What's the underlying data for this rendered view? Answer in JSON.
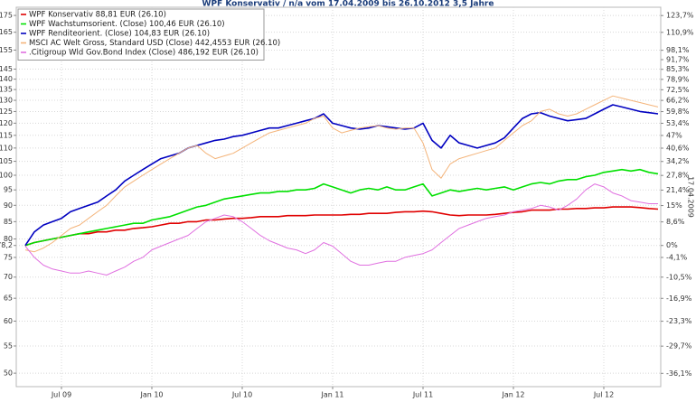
{
  "chart_data": {
    "type": "line",
    "title": "WPF Konservativ / n/a vom 17.04.2009 bis 26.10.2012 3,5 Jahre",
    "side_label": "17.04.2009",
    "log_scale": true,
    "grid": true,
    "legend": "top-left",
    "xlim": [
      2009.25,
      2012.815
    ],
    "xticks": [
      {
        "value": 2009.5,
        "label": "Jul 09"
      },
      {
        "value": 2010.0,
        "label": "Jan 10"
      },
      {
        "value": 2010.5,
        "label": "Jul 10"
      },
      {
        "value": 2011.0,
        "label": "Jan 11"
      },
      {
        "value": 2011.5,
        "label": "Jul 11"
      },
      {
        "value": 2012.0,
        "label": "Jan 12"
      },
      {
        "value": 2012.5,
        "label": "Jul 12"
      }
    ],
    "ylim": [
      47.7,
      180.1
    ],
    "yticks": [
      175,
      165,
      155,
      145,
      140,
      135,
      130,
      125,
      120,
      115,
      110,
      105,
      100,
      95,
      90,
      85,
      80,
      {
        "value": 78.2,
        "label": "78,2"
      },
      75,
      70,
      65,
      60,
      55,
      50
    ],
    "y2ticks": [
      {
        "value": 174.93,
        "label": "123,7%"
      },
      {
        "value": 164.93,
        "label": "110,9%"
      },
      {
        "value": 154.91,
        "label": "98,1%"
      },
      {
        "value": 149.91,
        "label": "91,7%"
      },
      {
        "value": 144.9,
        "label": "85,3%"
      },
      {
        "value": 139.9,
        "label": "78,9%"
      },
      {
        "value": 134.9,
        "label": "72,5%"
      },
      {
        "value": 129.97,
        "label": "66,2%"
      },
      {
        "value": 124.96,
        "label": "59,8%"
      },
      {
        "value": 119.96,
        "label": "53,4%"
      },
      {
        "value": 114.95,
        "label": "47%"
      },
      {
        "value": 109.95,
        "label": "40,6%"
      },
      {
        "value": 104.94,
        "label": "34,2%"
      },
      {
        "value": 99.94,
        "label": "27,8%"
      },
      {
        "value": 94.93,
        "label": "21,4%"
      },
      {
        "value": 89.93,
        "label": "15%"
      },
      {
        "value": 84.93,
        "label": "8,6%"
      },
      {
        "value": 78.2,
        "label": "0%"
      },
      {
        "value": 74.99,
        "label": "-4,1%"
      },
      {
        "value": 69.99,
        "label": "-10,5%"
      },
      {
        "value": 64.98,
        "label": "-16,9%"
      },
      {
        "value": 59.98,
        "label": "-23,3%"
      },
      {
        "value": 54.97,
        "label": "-29,7%"
      },
      {
        "value": 49.97,
        "label": "-36,1%"
      }
    ],
    "x": [
      2009.3,
      2009.35,
      2009.4,
      2009.45,
      2009.5,
      2009.55,
      2009.6,
      2009.65,
      2009.7,
      2009.75,
      2009.8,
      2009.85,
      2009.9,
      2009.95,
      2010.0,
      2010.05,
      2010.1,
      2010.15,
      2010.2,
      2010.25,
      2010.3,
      2010.35,
      2010.4,
      2010.45,
      2010.5,
      2010.55,
      2010.6,
      2010.65,
      2010.7,
      2010.75,
      2010.8,
      2010.85,
      2010.9,
      2010.95,
      2011.0,
      2011.05,
      2011.1,
      2011.15,
      2011.2,
      2011.25,
      2011.3,
      2011.35,
      2011.4,
      2011.45,
      2011.5,
      2011.55,
      2011.6,
      2011.65,
      2011.7,
      2011.75,
      2011.8,
      2011.85,
      2011.9,
      2011.95,
      2012.0,
      2012.05,
      2012.1,
      2012.15,
      2012.2,
      2012.25,
      2012.3,
      2012.35,
      2012.4,
      2012.45,
      2012.5,
      2012.55,
      2012.6,
      2012.65,
      2012.7,
      2012.75,
      2012.8
    ],
    "series": [
      {
        "name": "WPF Konservativ 88,81 EUR (26.10)",
        "color": "#e00000",
        "width": 1.6,
        "values": [
          78.2,
          79,
          79.5,
          80,
          80.5,
          81,
          81.5,
          81.5,
          82,
          82,
          82.5,
          82.5,
          83,
          83.2,
          83.5,
          84,
          84.5,
          84.5,
          85,
          85,
          85.5,
          85.5,
          85.8,
          86,
          86,
          86.2,
          86.5,
          86.5,
          86.5,
          86.8,
          86.8,
          86.8,
          87,
          87,
          87,
          87,
          87.2,
          87.2,
          87.5,
          87.5,
          87.5,
          87.8,
          88,
          88,
          88.2,
          88,
          87.5,
          87,
          86.8,
          87,
          87,
          87,
          87.2,
          87.5,
          87.8,
          88,
          88.5,
          88.5,
          88.5,
          88.8,
          88.8,
          89,
          89,
          89.2,
          89.2,
          89.5,
          89.5,
          89.5,
          89.3,
          89,
          88.8
        ]
      },
      {
        "name": "WPF Wachstumsorient. (Close) 100,46 EUR (26.10)",
        "color": "#00e000",
        "width": 1.6,
        "values": [
          78.2,
          79,
          79.5,
          80,
          80.5,
          81,
          81.5,
          82,
          82.5,
          83,
          83.5,
          84,
          84.5,
          84.5,
          85.5,
          86,
          86.5,
          87.5,
          88.5,
          89.5,
          90,
          91,
          92,
          92.5,
          93,
          93.5,
          94,
          94,
          94.5,
          94.5,
          95,
          95,
          95.5,
          97,
          96,
          95,
          94,
          95,
          95.5,
          95,
          96,
          95,
          95,
          96,
          97,
          93,
          94,
          95,
          94.5,
          95,
          95.5,
          95,
          95.5,
          96,
          95,
          96,
          97,
          97.5,
          97,
          98,
          98.5,
          98.5,
          99.5,
          100,
          101,
          101.5,
          102,
          101.5,
          102,
          101,
          100.5
        ]
      },
      {
        "name": "WPF Renditeorient. (Close) 104,83 EUR (26.10)",
        "color": "#0000c0",
        "width": 1.6,
        "values": [
          78.2,
          82,
          84,
          85,
          86,
          88,
          89,
          90,
          91,
          93,
          95,
          98,
          100,
          102,
          104,
          106,
          107,
          108,
          110,
          111,
          112,
          113,
          113.5,
          114.5,
          115,
          116,
          117,
          118,
          118,
          119,
          120,
          121,
          122,
          124,
          120,
          119,
          118,
          117.5,
          118,
          119,
          118.5,
          118,
          117.5,
          118,
          120,
          113,
          110,
          115,
          112,
          111,
          110,
          111,
          112,
          114,
          118,
          122,
          124,
          124.5,
          123,
          122,
          121,
          121.5,
          122,
          124,
          126,
          128,
          127,
          126,
          125,
          124.5,
          124
        ]
      },
      {
        "name": "MSCI AC Welt Gross, Standard USD (Close) 442,4553 EUR (26.10)",
        "color": "#f4b47a",
        "width": 1,
        "values": [
          77,
          76.5,
          77.5,
          79,
          81,
          83,
          84,
          86,
          88,
          90,
          93,
          96,
          98,
          100,
          102,
          104,
          106,
          108,
          110,
          111,
          108,
          106,
          107,
          108,
          110,
          112,
          114,
          116,
          117,
          118,
          119,
          120,
          122,
          123,
          118,
          116,
          117,
          118,
          118.5,
          119,
          118,
          117.5,
          118,
          118,
          112,
          102,
          99,
          104,
          106,
          107,
          108,
          109,
          110,
          113,
          116,
          119,
          121,
          125,
          126,
          124,
          123,
          124,
          126,
          128,
          130,
          132,
          131,
          130,
          129,
          128,
          127
        ]
      },
      {
        "name": ".Citigroup Wld Gov.Bond Index (Close) 486,192 EUR (26.10)",
        "color": "#e070e0",
        "width": 1,
        "values": [
          78,
          75,
          73,
          72,
          71.5,
          71,
          71,
          71.5,
          71,
          70.5,
          71.5,
          72.5,
          74,
          75,
          77,
          78,
          79,
          80,
          81,
          83,
          85,
          86,
          87,
          86.5,
          85,
          83,
          81,
          79.5,
          78.5,
          77.5,
          77,
          76,
          77,
          79,
          78,
          76,
          74,
          73,
          73,
          73.5,
          74,
          74,
          75,
          75.5,
          76,
          77,
          79,
          81,
          83,
          84,
          85,
          86,
          86.5,
          87,
          88,
          88.5,
          89,
          90,
          89.5,
          88.5,
          90,
          92,
          95,
          97,
          96,
          94,
          93,
          91.5,
          91,
          90.5,
          90.5
        ]
      }
    ]
  }
}
